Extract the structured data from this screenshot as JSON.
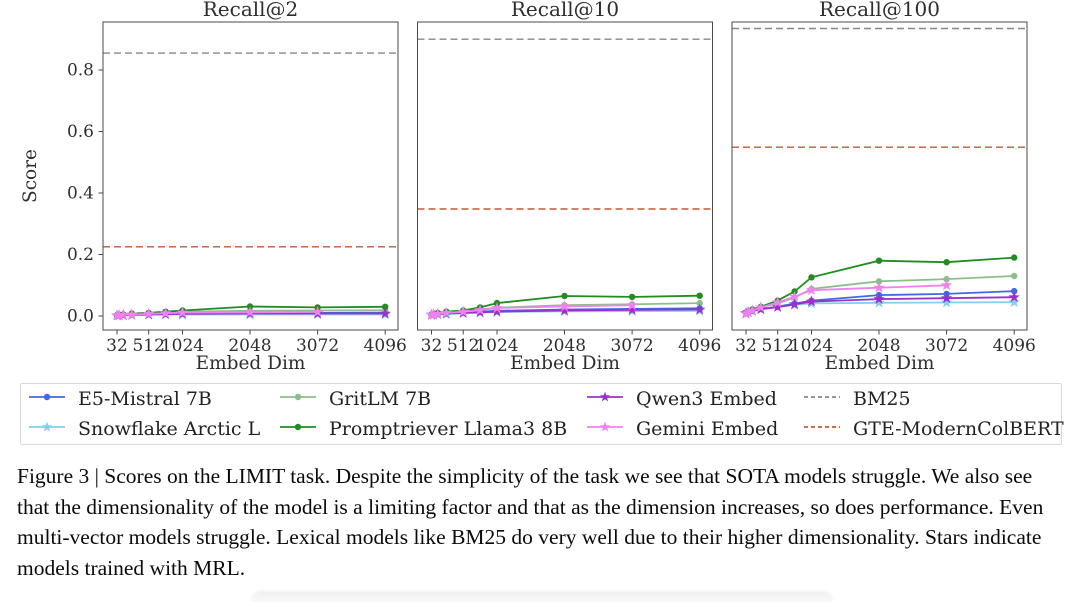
{
  "figure": {
    "ylabel": "Score",
    "xlabel": "Embed Dim",
    "caption": "Figure 3 | Scores on the LIMIT task. Despite the simplicity of the task we see that SOTA models struggle. We also see that the dimensionality of the model is a limiting factor and that as the dimension increases, so does performance. Even multi-vector models struggle. Lexical models like BM25 do very well due to their higher dimensionality. Stars indicate models trained with MRL."
  },
  "chart_data": [
    {
      "type": "line",
      "title": "Recall@2",
      "xlabel": "Embed Dim",
      "ylabel": "Score",
      "xticks": [
        32,
        512,
        1024,
        2048,
        3072,
        4096
      ],
      "yticks": [
        0.0,
        0.2,
        0.4,
        0.6,
        0.8
      ],
      "xlim": [
        -180,
        4290
      ],
      "ylim": [
        -0.0455,
        0.956
      ],
      "grid": false,
      "series": [
        {
          "name": "E5-Mistral 7B",
          "color": "#4169E1",
          "marker": "circle",
          "x": [
            32,
            64,
            128,
            256,
            512,
            768,
            1024,
            2048,
            3072,
            4096
          ],
          "values": [
            0.002,
            0.003,
            0.004,
            0.005,
            0.006,
            0.008,
            0.009,
            0.01,
            0.01,
            0.011
          ]
        },
        {
          "name": "Snowflake Arctic L",
          "color": "#87CEEB",
          "marker": "star",
          "x": [
            32,
            64,
            128,
            256,
            512,
            768,
            1024,
            2048,
            3072,
            4096
          ],
          "values": [
            0.001,
            0.002,
            0.002,
            0.003,
            0.004,
            0.005,
            0.005,
            0.005,
            0.005,
            0.005
          ]
        },
        {
          "name": "GritLM 7B",
          "color": "#8FBC8F",
          "marker": "circle",
          "x": [
            32,
            64,
            128,
            256,
            512,
            768,
            1024,
            2048,
            3072,
            4096
          ],
          "values": [
            0.003,
            0.004,
            0.005,
            0.007,
            0.009,
            0.012,
            0.014,
            0.017,
            0.018,
            0.019
          ]
        },
        {
          "name": "Promptriever Llama3 8B",
          "color": "#228B22",
          "marker": "circle",
          "x": [
            32,
            64,
            128,
            256,
            512,
            768,
            1024,
            2048,
            3072,
            4096
          ],
          "values": [
            0.003,
            0.004,
            0.005,
            0.008,
            0.01,
            0.014,
            0.018,
            0.031,
            0.028,
            0.03
          ]
        },
        {
          "name": "Qwen3 Embed",
          "color": "#9932CC",
          "marker": "star",
          "x": [
            32,
            64,
            128,
            256,
            512,
            768,
            1024,
            2048,
            3072,
            4096
          ],
          "values": [
            0.002,
            0.002,
            0.003,
            0.004,
            0.005,
            0.006,
            0.007,
            0.008,
            0.008,
            0.008
          ]
        },
        {
          "name": "Gemini Embed",
          "color": "#EE82EE",
          "marker": "star",
          "x": [
            32,
            64,
            128,
            256,
            512,
            768,
            1024,
            2048,
            3072
          ],
          "values": [
            0.002,
            0.003,
            0.004,
            0.005,
            0.007,
            0.009,
            0.011,
            0.012,
            0.013
          ]
        },
        {
          "name": "BM25",
          "color": "#888888",
          "style": "dashed",
          "hline": 0.855
        },
        {
          "name": "GTE-ModernColBERT",
          "color": "#C05A33",
          "style": "dashed",
          "hline": 0.225
        }
      ]
    },
    {
      "type": "line",
      "title": "Recall@10",
      "xlabel": "Embed Dim",
      "ylabel": "Score",
      "xticks": [
        32,
        512,
        1024,
        2048,
        3072,
        4096
      ],
      "yticks": [
        0.0,
        0.2,
        0.4,
        0.6,
        0.8
      ],
      "xlim": [
        -180,
        4290
      ],
      "ylim": [
        -0.0455,
        0.956
      ],
      "grid": false,
      "series": [
        {
          "name": "E5-Mistral 7B",
          "color": "#4169E1",
          "marker": "circle",
          "x": [
            32,
            64,
            128,
            256,
            512,
            768,
            1024,
            2048,
            3072,
            4096
          ],
          "values": [
            0.004,
            0.005,
            0.006,
            0.008,
            0.011,
            0.014,
            0.017,
            0.021,
            0.023,
            0.025
          ]
        },
        {
          "name": "Snowflake Arctic L",
          "color": "#87CEEB",
          "marker": "star",
          "x": [
            32,
            64,
            128,
            256,
            512,
            768,
            1024,
            2048,
            3072,
            4096
          ],
          "values": [
            0.003,
            0.004,
            0.005,
            0.006,
            0.009,
            0.011,
            0.013,
            0.015,
            0.016,
            0.017
          ]
        },
        {
          "name": "GritLM 7B",
          "color": "#8FBC8F",
          "marker": "circle",
          "x": [
            32,
            64,
            128,
            256,
            512,
            768,
            1024,
            2048,
            3072,
            4096
          ],
          "values": [
            0.005,
            0.006,
            0.009,
            0.012,
            0.016,
            0.021,
            0.027,
            0.035,
            0.038,
            0.042
          ]
        },
        {
          "name": "Promptriever Llama3 8B",
          "color": "#228B22",
          "marker": "circle",
          "x": [
            32,
            64,
            128,
            256,
            512,
            768,
            1024,
            2048,
            3072,
            4096
          ],
          "values": [
            0.005,
            0.007,
            0.01,
            0.014,
            0.018,
            0.028,
            0.042,
            0.065,
            0.062,
            0.066
          ]
        },
        {
          "name": "Qwen3 Embed",
          "color": "#9932CC",
          "marker": "star",
          "x": [
            32,
            64,
            128,
            256,
            512,
            768,
            1024,
            2048,
            3072,
            4096
          ],
          "values": [
            0.004,
            0.005,
            0.006,
            0.008,
            0.01,
            0.012,
            0.014,
            0.018,
            0.02,
            0.021
          ]
        },
        {
          "name": "Gemini Embed",
          "color": "#EE82EE",
          "marker": "star",
          "x": [
            32,
            64,
            128,
            256,
            512,
            768,
            1024,
            2048,
            3072
          ],
          "values": [
            0.004,
            0.005,
            0.007,
            0.01,
            0.014,
            0.019,
            0.026,
            0.031,
            0.035
          ]
        },
        {
          "name": "BM25",
          "color": "#888888",
          "style": "dashed",
          "hline": 0.9
        },
        {
          "name": "GTE-ModernColBERT",
          "color": "#C05A33",
          "style": "dashed",
          "hline": 0.348
        }
      ]
    },
    {
      "type": "line",
      "title": "Recall@100",
      "xlabel": "Embed Dim",
      "ylabel": "Score",
      "xticks": [
        32,
        512,
        1024,
        2048,
        3072,
        4096
      ],
      "yticks": [
        0.0,
        0.2,
        0.4,
        0.6,
        0.8
      ],
      "xlim": [
        -180,
        4290
      ],
      "ylim": [
        -0.0455,
        0.956
      ],
      "grid": false,
      "series": [
        {
          "name": "E5-Mistral 7B",
          "color": "#4169E1",
          "marker": "circle",
          "x": [
            32,
            64,
            128,
            256,
            512,
            768,
            1024,
            2048,
            3072,
            4096
          ],
          "values": [
            0.01,
            0.013,
            0.017,
            0.023,
            0.031,
            0.04,
            0.05,
            0.068,
            0.072,
            0.081
          ]
        },
        {
          "name": "Snowflake Arctic L",
          "color": "#87CEEB",
          "marker": "star",
          "x": [
            32,
            64,
            128,
            256,
            512,
            768,
            1024,
            2048,
            3072,
            4096
          ],
          "values": [
            0.008,
            0.011,
            0.016,
            0.022,
            0.03,
            0.036,
            0.041,
            0.043,
            0.044,
            0.045
          ]
        },
        {
          "name": "GritLM 7B",
          "color": "#8FBC8F",
          "marker": "circle",
          "x": [
            32,
            64,
            128,
            256,
            512,
            768,
            1024,
            2048,
            3072,
            4096
          ],
          "values": [
            0.01,
            0.014,
            0.021,
            0.029,
            0.041,
            0.06,
            0.088,
            0.113,
            0.12,
            0.13
          ]
        },
        {
          "name": "Promptriever Llama3 8B",
          "color": "#228B22",
          "marker": "circle",
          "x": [
            32,
            64,
            128,
            256,
            512,
            768,
            1024,
            2048,
            3072,
            4096
          ],
          "values": [
            0.011,
            0.015,
            0.021,
            0.03,
            0.05,
            0.08,
            0.126,
            0.18,
            0.175,
            0.19
          ]
        },
        {
          "name": "Qwen3 Embed",
          "color": "#9932CC",
          "marker": "star",
          "x": [
            32,
            64,
            128,
            256,
            512,
            768,
            1024,
            2048,
            3072,
            4096
          ],
          "values": [
            0.009,
            0.013,
            0.017,
            0.022,
            0.029,
            0.038,
            0.047,
            0.055,
            0.058,
            0.061
          ]
        },
        {
          "name": "Gemini Embed",
          "color": "#EE82EE",
          "marker": "star",
          "x": [
            32,
            64,
            128,
            256,
            512,
            768,
            1024,
            2048,
            3072
          ],
          "values": [
            0.007,
            0.011,
            0.018,
            0.028,
            0.044,
            0.063,
            0.084,
            0.092,
            0.1
          ]
        },
        {
          "name": "BM25",
          "color": "#888888",
          "style": "dashed",
          "hline": 0.935
        },
        {
          "name": "GTE-ModernColBERT",
          "color": "#C05A33",
          "style": "dashed",
          "hline": 0.549
        }
      ]
    }
  ],
  "legend": {
    "columns": [
      [
        {
          "label": "E5-Mistral 7B",
          "color": "#4169E1",
          "marker": "circle",
          "dashed": false
        },
        {
          "label": "Snowflake Arctic L",
          "color": "#87CEEB",
          "marker": "star",
          "dashed": false
        }
      ],
      [
        {
          "label": "GritLM 7B",
          "color": "#8FBC8F",
          "marker": "circle",
          "dashed": false
        },
        {
          "label": "Promptriever Llama3 8B",
          "color": "#228B22",
          "marker": "circle",
          "dashed": false
        }
      ],
      [
        {
          "label": "Qwen3 Embed",
          "color": "#9932CC",
          "marker": "star",
          "dashed": false
        },
        {
          "label": "Gemini Embed",
          "color": "#EE82EE",
          "marker": "star",
          "dashed": false
        }
      ],
      [
        {
          "label": "BM25",
          "color": "#888888",
          "marker": "none",
          "dashed": true
        },
        {
          "label": "GTE-ModernColBERT",
          "color": "#C05A33",
          "marker": "none",
          "dashed": true
        }
      ]
    ]
  }
}
